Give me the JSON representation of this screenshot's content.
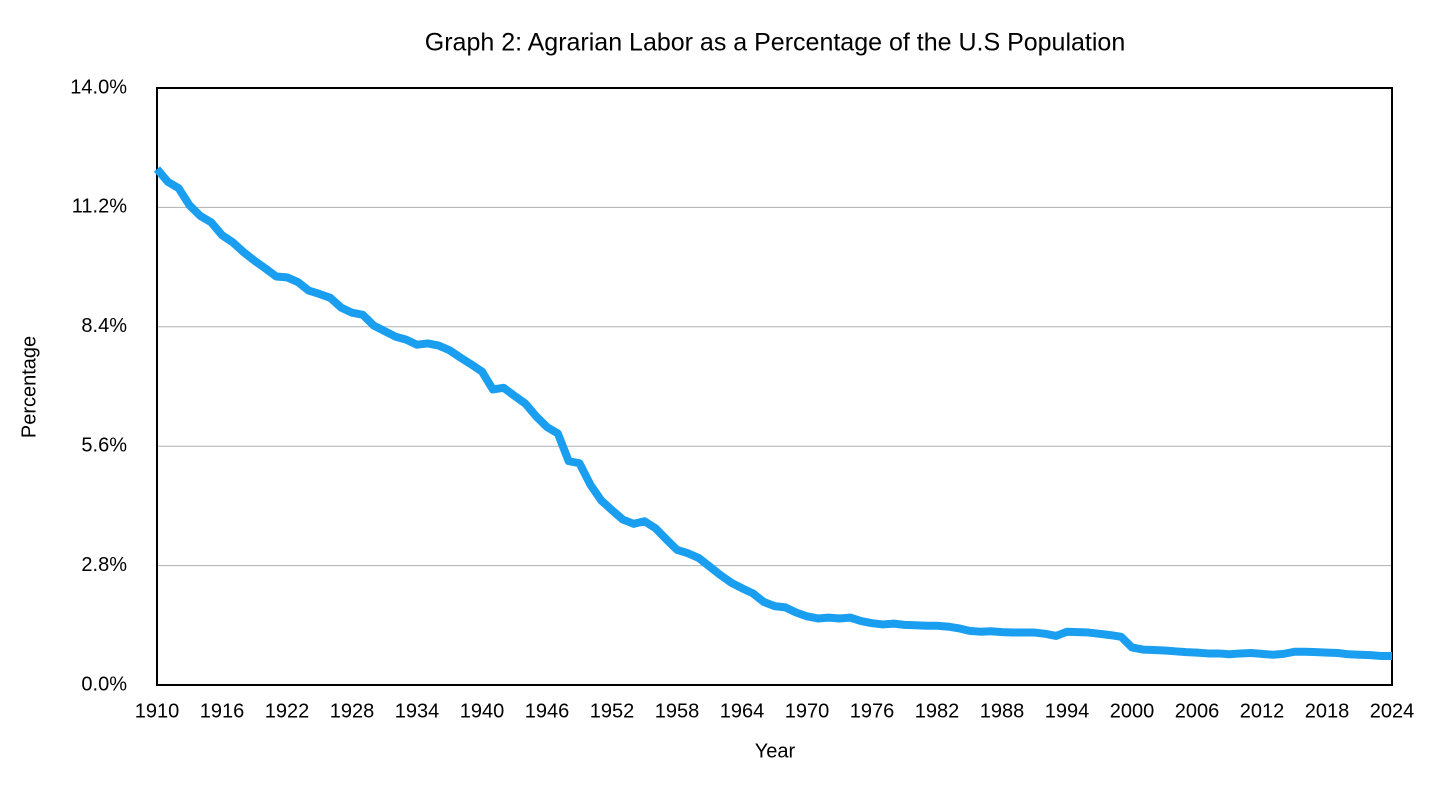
{
  "chart_data": {
    "type": "line",
    "title": "Graph 2: Agrarian Labor as a Percentage of the U.S Population",
    "x_label": "Year",
    "y_label": "Percentage",
    "x": [
      1910,
      1911,
      1912,
      1913,
      1914,
      1915,
      1916,
      1917,
      1918,
      1919,
      1920,
      1921,
      1922,
      1923,
      1924,
      1925,
      1926,
      1927,
      1928,
      1929,
      1930,
      1931,
      1932,
      1933,
      1934,
      1935,
      1936,
      1937,
      1938,
      1939,
      1940,
      1941,
      1942,
      1943,
      1944,
      1945,
      1946,
      1947,
      1948,
      1949,
      1950,
      1951,
      1952,
      1953,
      1954,
      1955,
      1956,
      1957,
      1958,
      1959,
      1960,
      1961,
      1962,
      1963,
      1964,
      1965,
      1966,
      1967,
      1968,
      1969,
      1970,
      1971,
      1972,
      1973,
      1974,
      1975,
      1976,
      1977,
      1978,
      1979,
      1980,
      1981,
      1982,
      1983,
      1984,
      1985,
      1986,
      1987,
      1988,
      1989,
      1990,
      1991,
      1992,
      1993,
      1994,
      1995,
      1996,
      1997,
      1998,
      1999,
      2000,
      2001,
      2002,
      2003,
      2004,
      2005,
      2006,
      2007,
      2008,
      2009,
      2010,
      2011,
      2012,
      2013,
      2014,
      2015,
      2016,
      2017,
      2018,
      2019,
      2020,
      2021,
      2022,
      2023,
      2024
    ],
    "series": [
      {
        "name": "Percentage",
        "color": "#1a9ff0",
        "values": [
          12.1,
          11.8,
          11.65,
          11.25,
          11.0,
          10.85,
          10.55,
          10.38,
          10.15,
          9.95,
          9.77,
          9.58,
          9.56,
          9.45,
          9.25,
          9.17,
          9.08,
          8.85,
          8.73,
          8.68,
          8.43,
          8.3,
          8.17,
          8.1,
          7.98,
          8.01,
          7.96,
          7.85,
          7.68,
          7.52,
          7.35,
          6.93,
          6.97,
          6.78,
          6.6,
          6.3,
          6.05,
          5.9,
          5.25,
          5.2,
          4.7,
          4.33,
          4.1,
          3.88,
          3.78,
          3.84,
          3.68,
          3.42,
          3.17,
          3.09,
          2.98,
          2.78,
          2.58,
          2.4,
          2.27,
          2.15,
          1.95,
          1.85,
          1.82,
          1.7,
          1.61,
          1.56,
          1.58,
          1.56,
          1.58,
          1.5,
          1.45,
          1.42,
          1.44,
          1.41,
          1.4,
          1.39,
          1.39,
          1.37,
          1.33,
          1.27,
          1.25,
          1.26,
          1.24,
          1.23,
          1.23,
          1.23,
          1.2,
          1.15,
          1.25,
          1.24,
          1.23,
          1.2,
          1.17,
          1.13,
          0.88,
          0.83,
          0.82,
          0.81,
          0.79,
          0.77,
          0.76,
          0.74,
          0.74,
          0.72,
          0.74,
          0.75,
          0.73,
          0.71,
          0.73,
          0.78,
          0.78,
          0.77,
          0.76,
          0.75,
          0.72,
          0.71,
          0.7,
          0.68,
          0.68
        ]
      }
    ],
    "xlim": [
      1910,
      2024
    ],
    "xticks": [
      1910,
      1916,
      1922,
      1928,
      1934,
      1940,
      1946,
      1952,
      1958,
      1964,
      1970,
      1976,
      1982,
      1988,
      1994,
      2000,
      2006,
      2012,
      2018,
      2024
    ],
    "ylim": [
      0,
      14
    ],
    "yticks": [
      {
        "value": 0,
        "label": "0.0%"
      },
      {
        "value": 2.8,
        "label": "2.8%"
      },
      {
        "value": 5.6,
        "label": "5.6%"
      },
      {
        "value": 8.4,
        "label": "8.4%"
      },
      {
        "value": 11.2,
        "label": "11.2%"
      },
      {
        "value": 14,
        "label": "14.0%"
      }
    ],
    "grid": true
  }
}
